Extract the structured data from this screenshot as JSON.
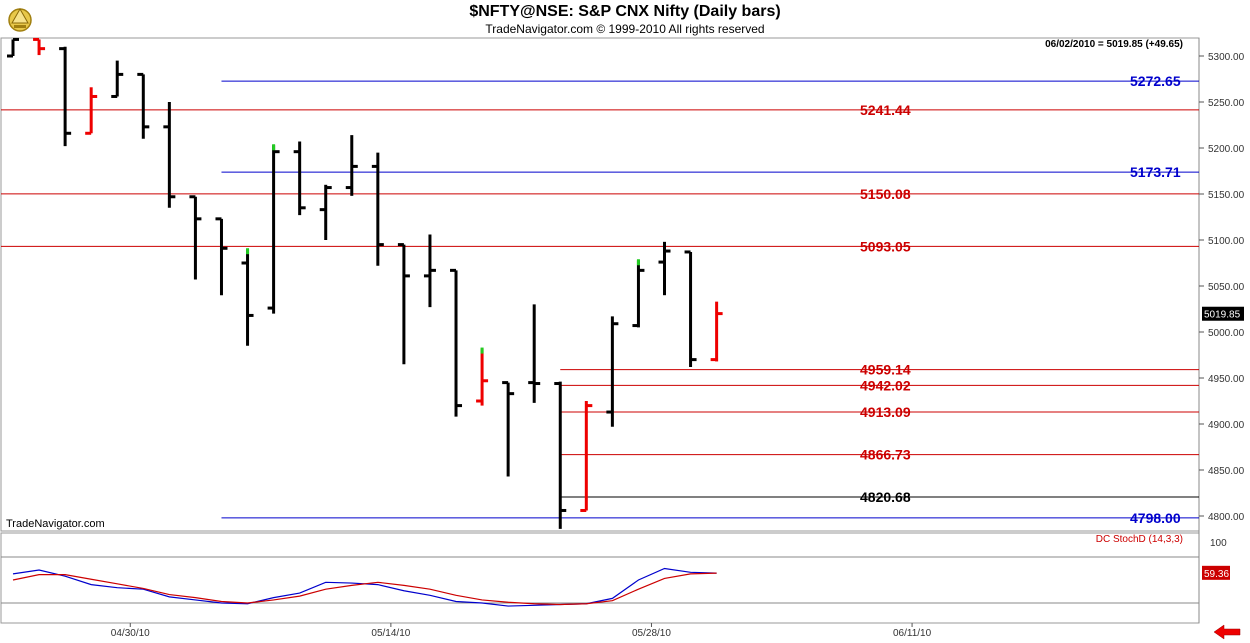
{
  "header": {
    "title": "$NFTY@NSE:  S&P CNX Nifty  (Daily bars)",
    "subtitle": "TradeNavigator.com © 1999-2010 All rights reserved",
    "last_info": "06/02/2010 = 5019.85 (+49.65)",
    "last_value": "5019.85",
    "watermark": "TradeNavigator.com"
  },
  "colors": {
    "bar": "#000000",
    "down_bar": "#ee0000",
    "up_tick": "#22cc22",
    "blue_level": "#0000cc",
    "red_level": "#cc0000",
    "black_level": "#000000",
    "stoch_k": "#0000cc",
    "stoch_d": "#cc0000"
  },
  "chart_data": [
    {
      "type": "ohlc",
      "title": "$NFTY@NSE:  S&P CNX Nifty  (Daily bars)",
      "y_ticks": [
        "5300.00",
        "5250.00",
        "5200.00",
        "5150.00",
        "5100.00",
        "5050.00",
        "5000.00",
        "4950.00",
        "4900.00",
        "4850.00",
        "4800.00"
      ],
      "ylim": [
        4775,
        5318
      ],
      "x_labels": [
        {
          "label": "04/30/10",
          "at": 4.5
        },
        {
          "label": "05/14/10",
          "at": 14.5
        },
        {
          "label": "05/28/10",
          "at": 24.5
        },
        {
          "label": "06/11/10",
          "at": 34.5
        }
      ],
      "xlim": [
        0,
        46.2
      ],
      "bars": [
        {
          "o": 5300,
          "h": 5318,
          "l": 5300,
          "c": 5318,
          "color": "black"
        },
        {
          "o": 5318,
          "h": 5318,
          "l": 5301,
          "c": 5308,
          "color": "red"
        },
        {
          "o": 5308,
          "h": 5310,
          "l": 5202,
          "c": 5216,
          "color": "black"
        },
        {
          "o": 5216,
          "h": 5266,
          "l": 5216,
          "c": 5256,
          "color": "red"
        },
        {
          "o": 5256,
          "h": 5295,
          "l": 5256,
          "c": 5280,
          "color": "black"
        },
        {
          "o": 5280,
          "h": 5280,
          "l": 5210,
          "c": 5223,
          "color": "black"
        },
        {
          "o": 5223,
          "h": 5250,
          "l": 5135,
          "c": 5147,
          "color": "black"
        },
        {
          "o": 5147,
          "h": 5147,
          "l": 5057,
          "c": 5123,
          "color": "black"
        },
        {
          "o": 5123,
          "h": 5123,
          "l": 5040,
          "c": 5091,
          "color": "black"
        },
        {
          "o": 5075,
          "h": 5090,
          "l": 4985,
          "c": 5018,
          "color": "black",
          "up_tick": true
        },
        {
          "o": 5026,
          "h": 5203,
          "l": 5020,
          "c": 5196,
          "color": "black",
          "up_tick": true
        },
        {
          "o": 5196,
          "h": 5207,
          "l": 5127,
          "c": 5135,
          "color": "black"
        },
        {
          "o": 5133,
          "h": 5160,
          "l": 5100,
          "c": 5157,
          "color": "black"
        },
        {
          "o": 5157,
          "h": 5214,
          "l": 5148,
          "c": 5180,
          "color": "black"
        },
        {
          "o": 5180,
          "h": 5195,
          "l": 5072,
          "c": 5095,
          "color": "black"
        },
        {
          "o": 5095,
          "h": 5095,
          "l": 4965,
          "c": 5061,
          "color": "black"
        },
        {
          "o": 5061,
          "h": 5106,
          "l": 5027,
          "c": 5067,
          "color": "black"
        },
        {
          "o": 5067,
          "h": 5067,
          "l": 4908,
          "c": 4920,
          "color": "black"
        },
        {
          "o": 4925,
          "h": 4982,
          "l": 4920,
          "c": 4947,
          "color": "red",
          "up_tick": true
        },
        {
          "o": 4945,
          "h": 4945,
          "l": 4843,
          "c": 4933,
          "color": "black"
        },
        {
          "o": 4945,
          "h": 5030,
          "l": 4923,
          "c": 4944,
          "color": "black"
        },
        {
          "o": 4944,
          "h": 4946,
          "l": 4786,
          "c": 4806,
          "color": "black"
        },
        {
          "o": 4806,
          "h": 4925,
          "l": 4806,
          "c": 4920,
          "color": "red"
        },
        {
          "o": 4913,
          "h": 5017,
          "l": 4897,
          "c": 5009,
          "color": "black"
        },
        {
          "o": 5007,
          "h": 5078,
          "l": 5005,
          "c": 5067,
          "color": "black",
          "up_tick": true
        },
        {
          "o": 5076,
          "h": 5098,
          "l": 5040,
          "c": 5088,
          "color": "black"
        },
        {
          "o": 5087,
          "h": 5087,
          "l": 4962,
          "c": 4970,
          "color": "black"
        },
        {
          "o": 4970,
          "h": 5033,
          "l": 4968,
          "c": 5020,
          "color": "red"
        }
      ],
      "levels": [
        {
          "value": 5272.65,
          "label": "5272.65",
          "color": "blue",
          "from": 8
        },
        {
          "value": 5241.44,
          "label": "5241.44",
          "color": "red",
          "from": 0
        },
        {
          "value": 5173.71,
          "label": "5173.71",
          "color": "blue",
          "from": 8
        },
        {
          "value": 5150.08,
          "label": "5150.08",
          "color": "red",
          "from": 0
        },
        {
          "value": 5093.05,
          "label": "5093.05",
          "color": "red",
          "from": 0
        },
        {
          "value": 4959.14,
          "label": "4959.14",
          "color": "red",
          "from": 21
        },
        {
          "value": 4942.02,
          "label": "4942.02",
          "color": "red",
          "from": 21
        },
        {
          "value": 4913.09,
          "label": "4913.09",
          "color": "red",
          "from": 21
        },
        {
          "value": 4866.73,
          "label": "4866.73",
          "color": "red",
          "from": 21
        },
        {
          "value": 4820.68,
          "label": "4820.68",
          "color": "black",
          "from": 21
        },
        {
          "value": 4798.0,
          "label": "4798.00",
          "color": "blue",
          "from": 8
        }
      ]
    },
    {
      "type": "line",
      "title": "DC StochD (14,3,3)",
      "ylim": [
        0,
        100
      ],
      "y_ticks": [
        "100"
      ],
      "reference_lines": [
        80,
        20
      ],
      "last_value": "59.36",
      "series": [
        {
          "name": "K",
          "color": "#0000cc",
          "values": [
            58,
            63,
            55,
            44,
            40,
            38,
            28,
            24,
            20,
            19,
            27,
            33,
            47,
            46,
            44,
            36,
            30,
            22,
            20,
            16,
            17,
            18,
            19,
            26,
            50,
            65,
            60,
            59
          ]
        },
        {
          "name": "D",
          "color": "#cc0000",
          "values": [
            50,
            57,
            57,
            51,
            45,
            39,
            31,
            27,
            22,
            20,
            24,
            29,
            38,
            43,
            47,
            43,
            38,
            30,
            24,
            21,
            19,
            18,
            19,
            23,
            38,
            52,
            58,
            59
          ]
        }
      ]
    }
  ]
}
